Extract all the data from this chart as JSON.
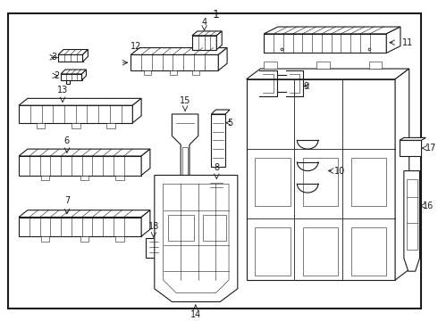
{
  "bg_color": "#ffffff",
  "border_color": "#000000",
  "line_color": "#1a1a1a",
  "label_color": "#000000",
  "figsize": [
    4.9,
    3.6
  ],
  "dpi": 100
}
